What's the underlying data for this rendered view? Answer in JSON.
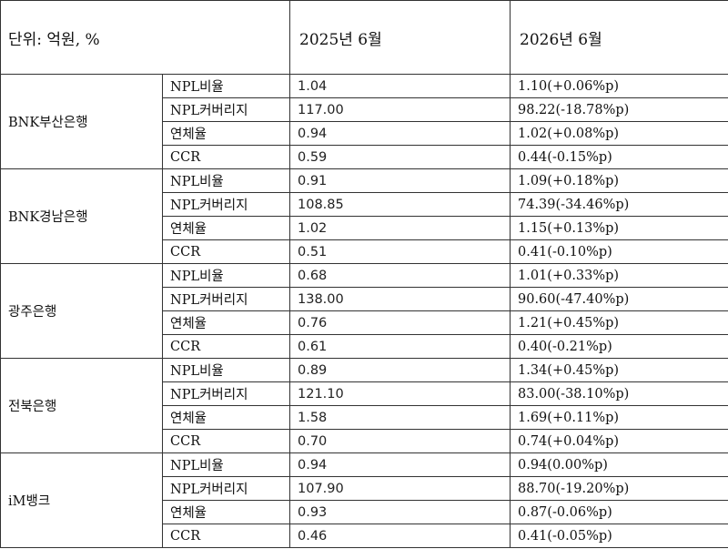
{
  "header": {
    "unit_label": "단위: 억원, %",
    "col_2025": "2025년 6월",
    "col_2026": "2026년 6월"
  },
  "banks": [
    {
      "name": "BNK부산은행",
      "rows": [
        {
          "metric": "NPL비율",
          "v2025": "1.04",
          "v2026": "1.10(+0.06%p)"
        },
        {
          "metric": "NPL커버리지",
          "v2025": "117.00",
          "v2026": "98.22(-18.78%p)"
        },
        {
          "metric": "연체율",
          "v2025": "0.94",
          "v2026": "1.02(+0.08%p)"
        },
        {
          "metric": "CCR",
          "v2025": "0.59",
          "v2026": "0.44(-0.15%p)"
        }
      ]
    },
    {
      "name": "BNK경남은행",
      "rows": [
        {
          "metric": "NPL비율",
          "v2025": "0.91",
          "v2026": "1.09(+0.18%p)"
        },
        {
          "metric": "NPL커버리지",
          "v2025": "108.85",
          "v2026": "74.39(-34.46%p)"
        },
        {
          "metric": "연체율",
          "v2025": "1.02",
          "v2026": "1.15(+0.13%p)"
        },
        {
          "metric": "CCR",
          "v2025": "0.51",
          "v2026": "0.41(-0.10%p)"
        }
      ]
    },
    {
      "name": "광주은행",
      "rows": [
        {
          "metric": "NPL비율",
          "v2025": "0.68",
          "v2026": "1.01(+0.33%p)"
        },
        {
          "metric": "NPL커버리지",
          "v2025": "138.00",
          "v2026": "90.60(-47.40%p)"
        },
        {
          "metric": "연체율",
          "v2025": "0.76",
          "v2026": "1.21(+0.45%p)"
        },
        {
          "metric": "CCR",
          "v2025": "0.61",
          "v2026": "0.40(-0.21%p)"
        }
      ]
    },
    {
      "name": "전북은행",
      "rows": [
        {
          "metric": "NPL비율",
          "v2025": "0.89",
          "v2026": "1.34(+0.45%p)"
        },
        {
          "metric": "NPL커버리지",
          "v2025": "121.10",
          "v2026": "83.00(-38.10%p)"
        },
        {
          "metric": "연체율",
          "v2025": "1.58",
          "v2026": "1.69(+0.11%p)"
        },
        {
          "metric": "CCR",
          "v2025": "0.70",
          "v2026": "0.74(+0.04%p)"
        }
      ]
    },
    {
      "name": "iM뱅크",
      "rows": [
        {
          "metric": "NPL비율",
          "v2025": "0.94",
          "v2026": "0.94(0.00%p)"
        },
        {
          "metric": "NPL커버리지",
          "v2025": "107.90",
          "v2026": "88.70(-19.20%p)"
        },
        {
          "metric": "연체율",
          "v2025": "0.93",
          "v2026": "0.87(-0.06%p)"
        },
        {
          "metric": "CCR",
          "v2025": "0.46",
          "v2026": "0.41(-0.05%p)"
        }
      ]
    }
  ]
}
